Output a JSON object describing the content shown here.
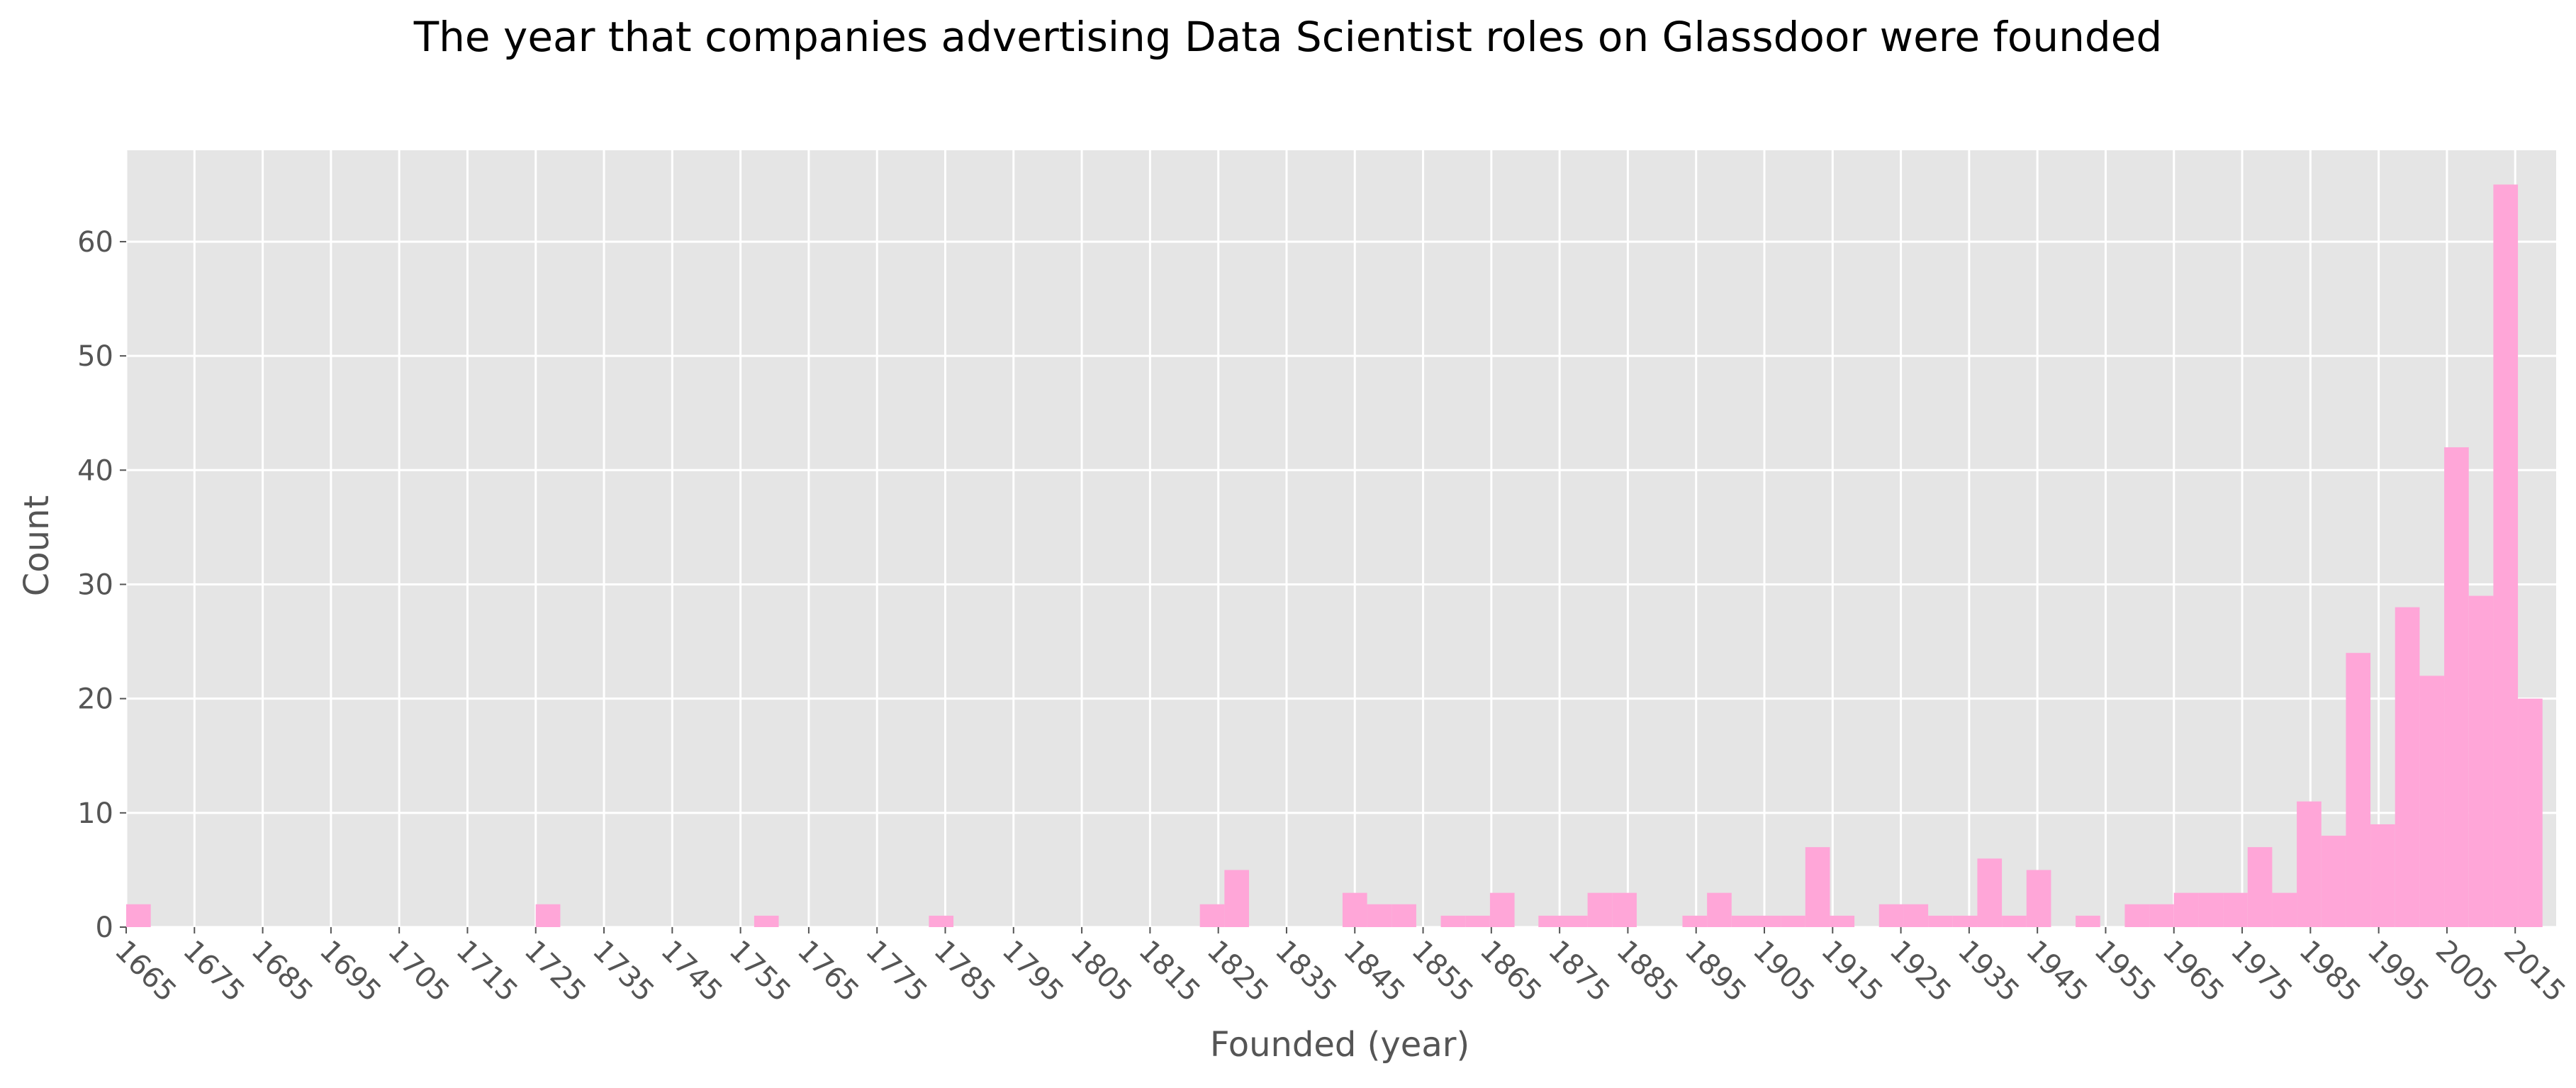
{
  "chart_data": {
    "type": "bar",
    "title": "The year that companies advertising Data Scientist roles on Glassdoor were founded",
    "xlabel": "Founded (year)",
    "ylabel": "Count",
    "xlim": [
      1665,
      2021
    ],
    "ylim": [
      0,
      68
    ],
    "x_ticks": [
      "1665",
      "1675",
      "1685",
      "1695",
      "1705",
      "1715",
      "1725",
      "1735",
      "1745",
      "1755",
      "1765",
      "1775",
      "1785",
      "1795",
      "1805",
      "1815",
      "1825",
      "1835",
      "1845",
      "1855",
      "1865",
      "1875",
      "1885",
      "1895",
      "1905",
      "1915",
      "1925",
      "1935",
      "1945",
      "1955",
      "1965",
      "1975",
      "1985",
      "1995",
      "2005",
      "2015"
    ],
    "y_ticks": [
      "0",
      "10",
      "20",
      "30",
      "40",
      "50",
      "60"
    ],
    "grid": true,
    "bar_color": "#ffa6d8",
    "background_color": "#e5e5e5",
    "bins": [
      {
        "start": 1665.0,
        "end": 1668.6,
        "count": 2
      },
      {
        "start": 1725.0,
        "end": 1728.6,
        "count": 2
      },
      {
        "start": 1757.0,
        "end": 1760.6,
        "count": 1
      },
      {
        "start": 1782.6,
        "end": 1786.2,
        "count": 1
      },
      {
        "start": 1822.3,
        "end": 1825.9,
        "count": 2
      },
      {
        "start": 1825.9,
        "end": 1829.5,
        "count": 5
      },
      {
        "start": 1843.2,
        "end": 1846.8,
        "count": 3
      },
      {
        "start": 1846.8,
        "end": 1850.4,
        "count": 2
      },
      {
        "start": 1850.4,
        "end": 1854.0,
        "count": 2
      },
      {
        "start": 1857.6,
        "end": 1861.2,
        "count": 1
      },
      {
        "start": 1861.2,
        "end": 1864.8,
        "count": 1
      },
      {
        "start": 1864.8,
        "end": 1868.4,
        "count": 3
      },
      {
        "start": 1871.9,
        "end": 1875.5,
        "count": 1
      },
      {
        "start": 1875.5,
        "end": 1879.1,
        "count": 1
      },
      {
        "start": 1879.1,
        "end": 1882.7,
        "count": 3
      },
      {
        "start": 1882.7,
        "end": 1886.3,
        "count": 3
      },
      {
        "start": 1893.0,
        "end": 1896.6,
        "count": 1
      },
      {
        "start": 1896.6,
        "end": 1900.2,
        "count": 3
      },
      {
        "start": 1900.2,
        "end": 1903.8,
        "count": 1
      },
      {
        "start": 1903.8,
        "end": 1907.4,
        "count": 1
      },
      {
        "start": 1907.4,
        "end": 1911.0,
        "count": 1
      },
      {
        "start": 1911.0,
        "end": 1914.6,
        "count": 7
      },
      {
        "start": 1914.6,
        "end": 1918.2,
        "count": 1
      },
      {
        "start": 1921.8,
        "end": 1925.4,
        "count": 2
      },
      {
        "start": 1925.4,
        "end": 1929.0,
        "count": 2
      },
      {
        "start": 1929.0,
        "end": 1932.6,
        "count": 1
      },
      {
        "start": 1932.6,
        "end": 1936.2,
        "count": 1
      },
      {
        "start": 1936.2,
        "end": 1939.8,
        "count": 6
      },
      {
        "start": 1939.8,
        "end": 1943.4,
        "count": 1
      },
      {
        "start": 1943.4,
        "end": 1947.0,
        "count": 5
      },
      {
        "start": 1950.6,
        "end": 1954.2,
        "count": 1
      },
      {
        "start": 1957.8,
        "end": 1961.4,
        "count": 2
      },
      {
        "start": 1961.4,
        "end": 1965.0,
        "count": 2
      },
      {
        "start": 1965.0,
        "end": 1968.6,
        "count": 3
      },
      {
        "start": 1968.6,
        "end": 1972.2,
        "count": 3
      },
      {
        "start": 1972.2,
        "end": 1975.8,
        "count": 3
      },
      {
        "start": 1975.8,
        "end": 1979.4,
        "count": 7
      },
      {
        "start": 1979.4,
        "end": 1983.0,
        "count": 3
      },
      {
        "start": 1983.0,
        "end": 1986.6,
        "count": 11
      },
      {
        "start": 1986.6,
        "end": 1990.2,
        "count": 8
      },
      {
        "start": 1990.2,
        "end": 1993.8,
        "count": 24
      },
      {
        "start": 1993.8,
        "end": 1997.4,
        "count": 9
      },
      {
        "start": 1997.4,
        "end": 2001.0,
        "count": 28
      },
      {
        "start": 2001.0,
        "end": 2004.6,
        "count": 22
      },
      {
        "start": 2004.6,
        "end": 2008.2,
        "count": 42
      },
      {
        "start": 2008.2,
        "end": 2011.8,
        "count": 29
      },
      {
        "start": 2011.8,
        "end": 2015.4,
        "count": 65
      },
      {
        "start": 2015.4,
        "end": 2019.0,
        "count": 20
      }
    ]
  }
}
